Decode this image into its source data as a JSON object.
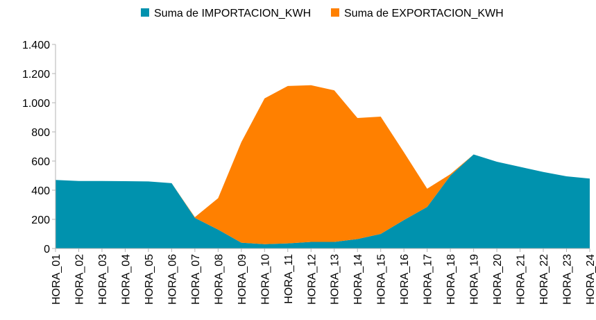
{
  "chart_data": {
    "type": "stacked_area",
    "categories": [
      "HORA_01",
      "HORA_02",
      "HORA_03",
      "HORA_04",
      "HORA_05",
      "HORA_06",
      "HORA_07",
      "HORA_08",
      "HORA_09",
      "HORA_10",
      "HORA_11",
      "HORA_12",
      "HORA_13",
      "HORA_14",
      "HORA_15",
      "HORA_16",
      "HORA_17",
      "HORA_18",
      "HORA_19",
      "HORA_20",
      "HORA_21",
      "HORA_22",
      "HORA_23",
      "HORA_24"
    ],
    "series": [
      {
        "name": "Suma de IMPORTACION_KWH",
        "color": "#0092ae",
        "values": [
          470,
          463,
          463,
          462,
          460,
          448,
          210,
          130,
          40,
          30,
          35,
          45,
          45,
          65,
          100,
          195,
          285,
          500,
          645,
          595,
          560,
          525,
          495,
          480
        ]
      },
      {
        "name": "Suma de EXPORTACION_KWH",
        "color": "#ff8000",
        "values": [
          0,
          0,
          0,
          0,
          0,
          0,
          5,
          215,
          690,
          1000,
          1080,
          1075,
          1040,
          830,
          805,
          465,
          125,
          10,
          0,
          0,
          0,
          0,
          0,
          0
        ]
      }
    ],
    "ylim": [
      0,
      1400
    ],
    "yticks": [
      0,
      200,
      400,
      600,
      800,
      {
        "value": 1000,
        "label": "1.000"
      },
      {
        "value": 1200,
        "label": "1.200"
      },
      {
        "value": 1400,
        "label": "1.400"
      }
    ],
    "legend": "top"
  }
}
